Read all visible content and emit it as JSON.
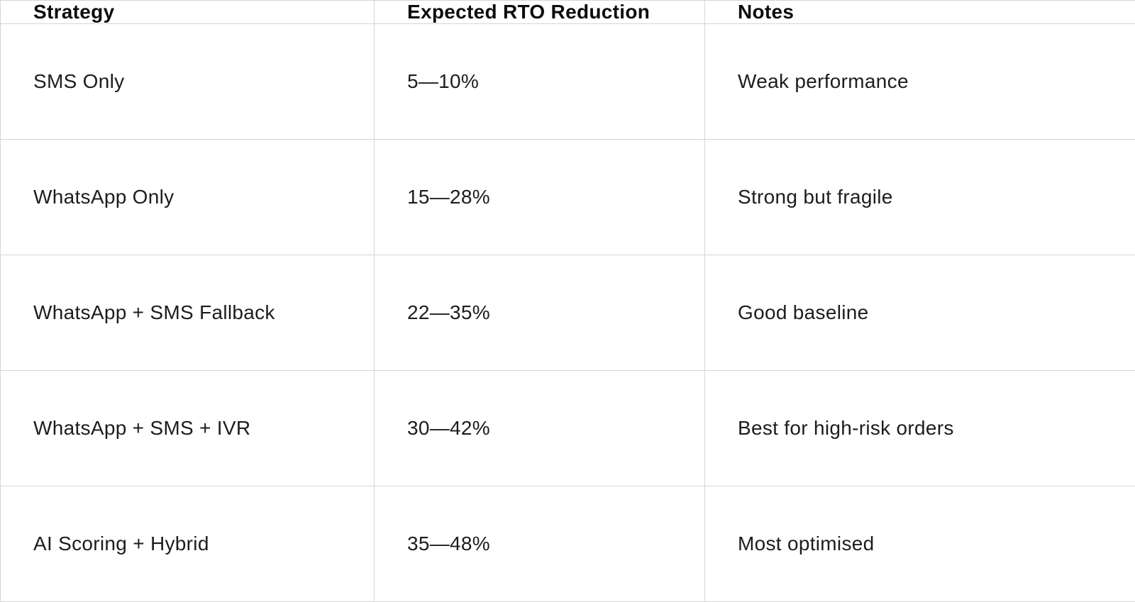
{
  "table": {
    "columns": [
      {
        "label": "Strategy"
      },
      {
        "label": "Expected RTO Reduction"
      },
      {
        "label": "Notes"
      }
    ],
    "rows": [
      {
        "strategy": "SMS Only",
        "rto": "5—10%",
        "notes": "Weak performance"
      },
      {
        "strategy": "WhatsApp Only",
        "rto": "15—28%",
        "notes": "Strong but fragile"
      },
      {
        "strategy": "WhatsApp + SMS Fallback",
        "rto": "22—35%",
        "notes": "Good baseline"
      },
      {
        "strategy": "WhatsApp + SMS + IVR",
        "rto": "30—42%",
        "notes": "Best for high-risk orders"
      },
      {
        "strategy": "AI Scoring + Hybrid",
        "rto": "35—48%",
        "notes": "Most optimised"
      }
    ],
    "colors": {
      "grid_border": "#d5d5d5",
      "header_text": "#0d0d0d",
      "body_text": "#1d1d1f",
      "background": "#ffffff"
    }
  }
}
